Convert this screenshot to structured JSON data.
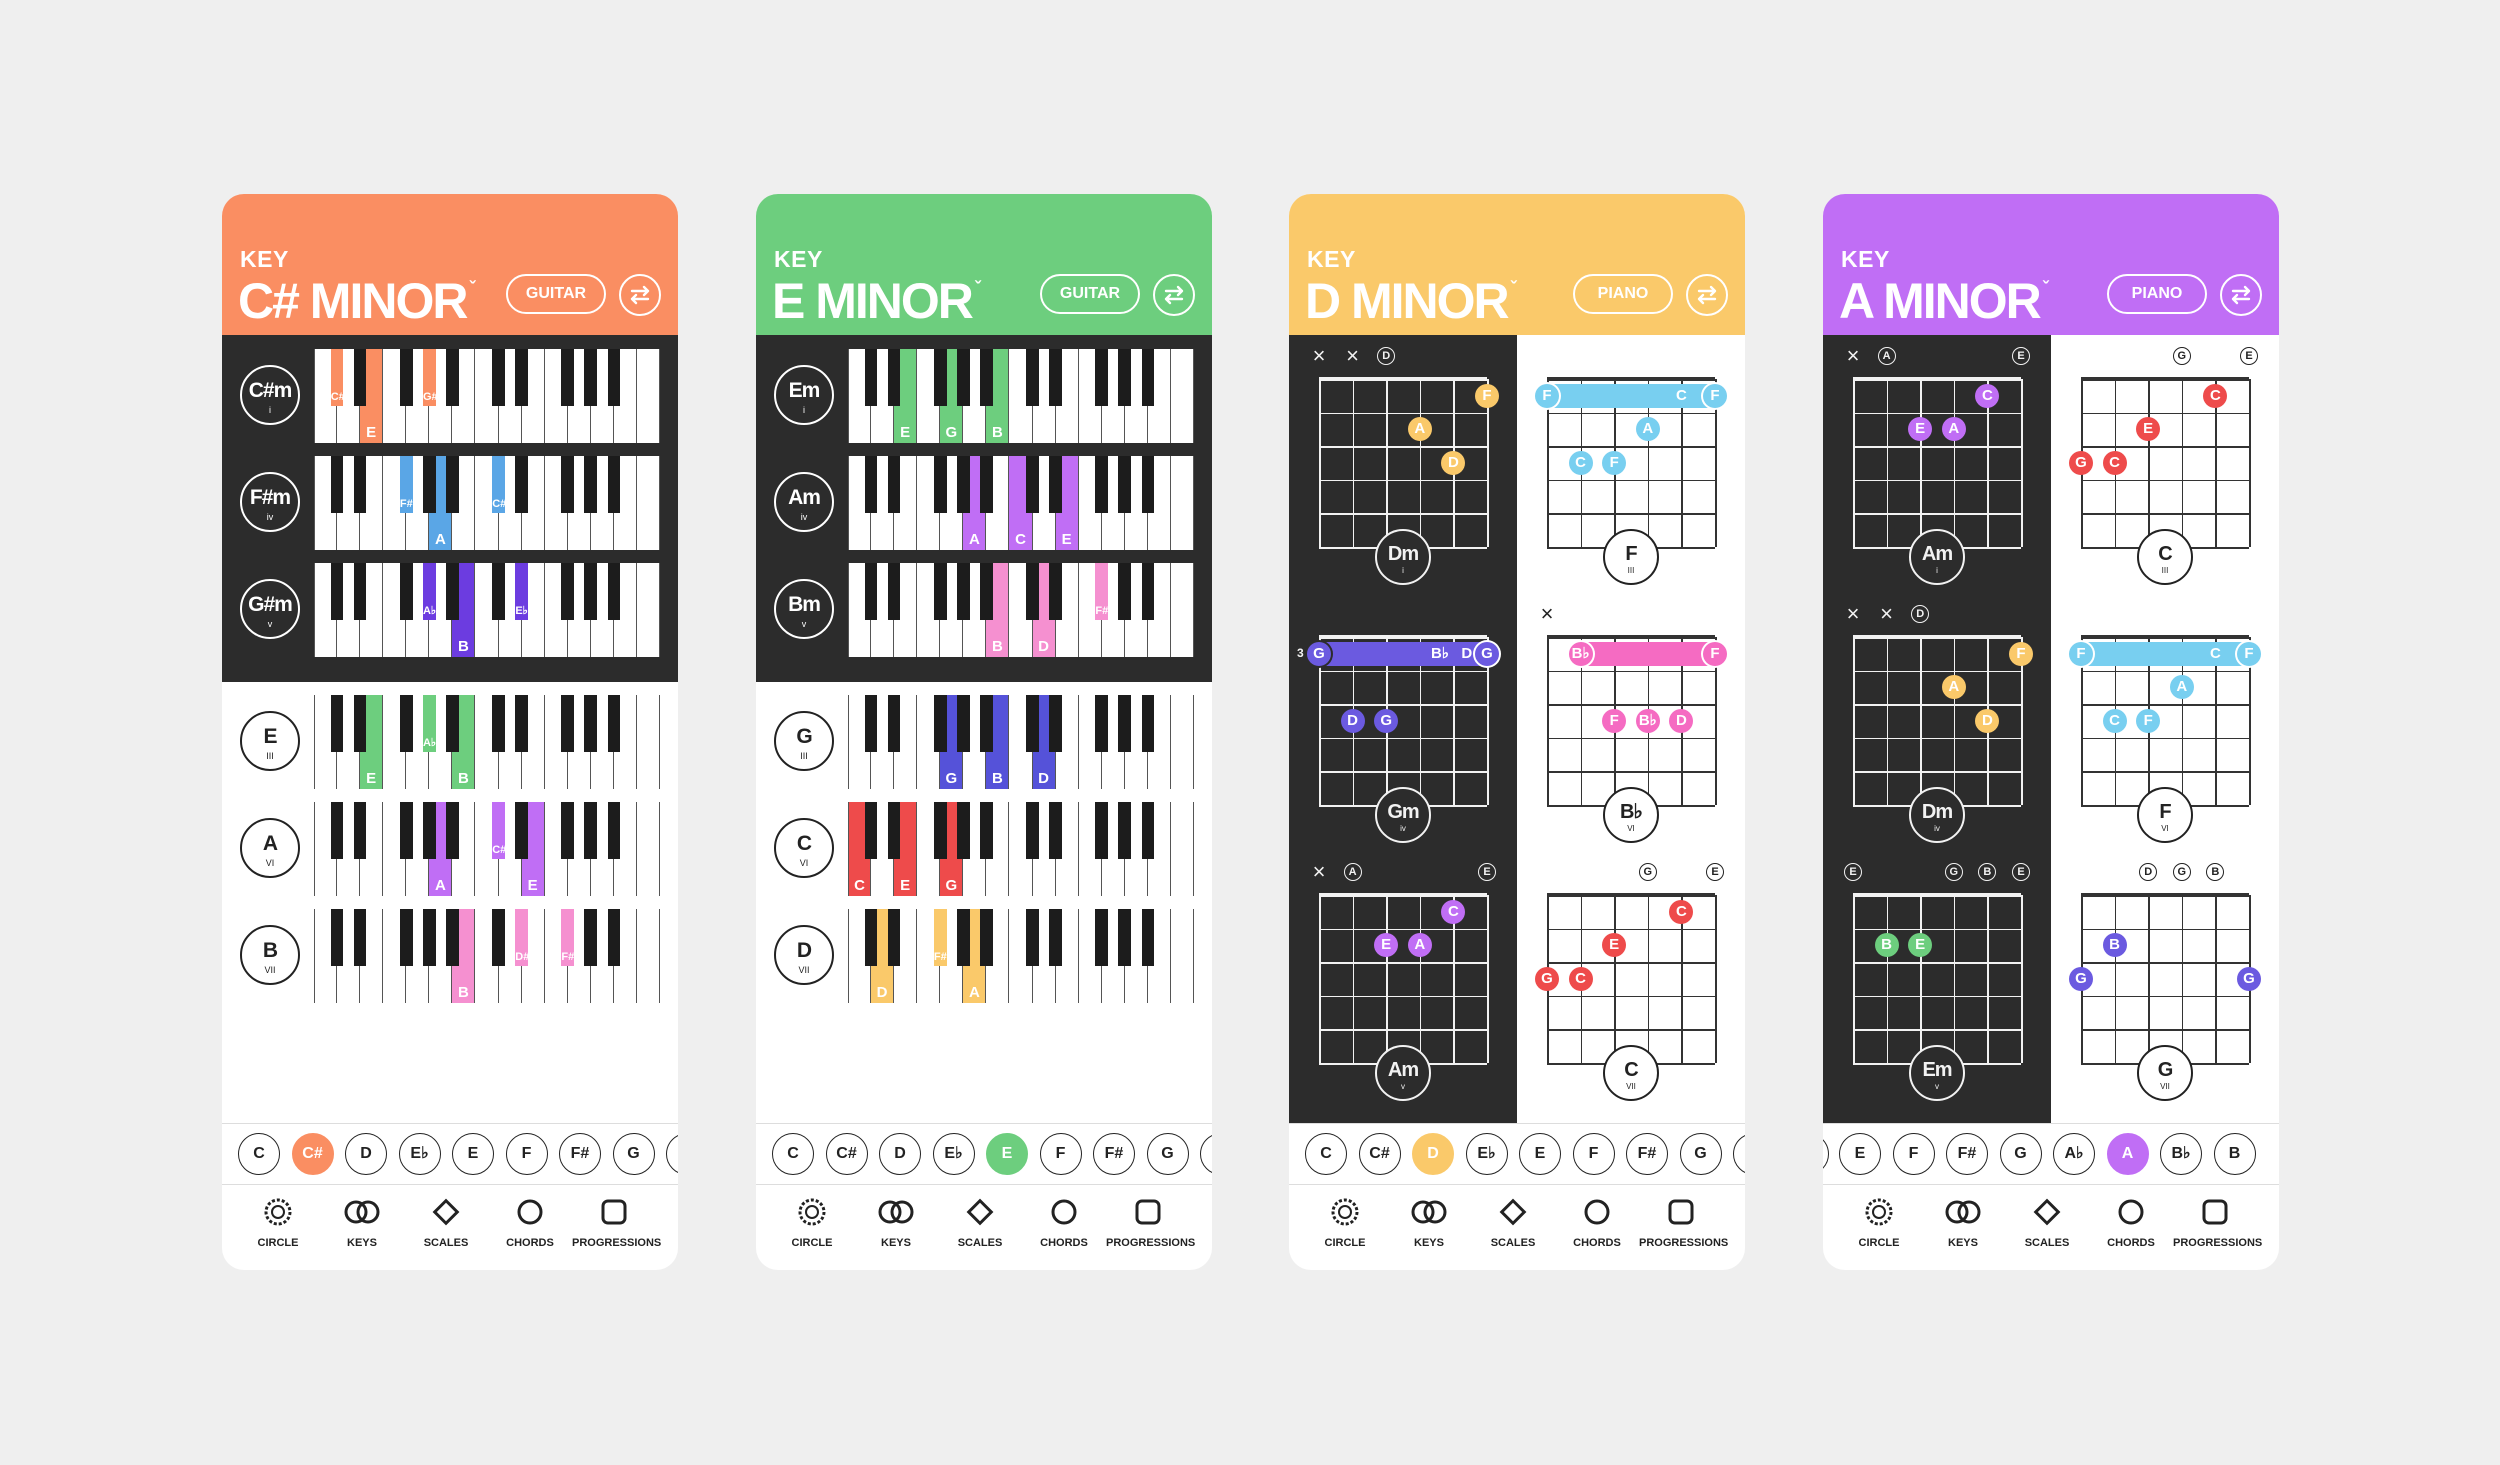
{
  "colors": {
    "orange": "#fa8e62",
    "green": "#6dce7e",
    "yellow": "#fac96a",
    "purple": "#c06ef5",
    "blue_key": "#5aa6e6",
    "dark_purple_key": "#6c3ce0",
    "pink": "#f56bc2",
    "red": "#ee4b4b",
    "indigo": "#6b5ae0",
    "cyan": "#78cff0",
    "navy": "#5552d9"
  },
  "key_label": "KEY",
  "caret": "ˇ",
  "nav": [
    {
      "label": "CIRCLE",
      "icon": "circle-of-fifths-icon"
    },
    {
      "label": "KEYS",
      "icon": "keys-rings-icon"
    },
    {
      "label": "SCALES",
      "icon": "diamond-icon"
    },
    {
      "label": "CHORDS",
      "icon": "ring-icon"
    },
    {
      "label": "PROGRESSIONS",
      "icon": "square-icon"
    }
  ],
  "phones": [
    {
      "title": "C# MINOR",
      "instrument": "GUITAR",
      "accent": "#fa8e62",
      "keybar": [
        {
          "t": "C"
        },
        {
          "t": "C#",
          "sel": true
        },
        {
          "t": "D"
        },
        {
          "t": "E♭"
        },
        {
          "t": "E"
        },
        {
          "t": "F"
        },
        {
          "t": "F#"
        },
        {
          "t": "G"
        },
        {
          "t": ""
        }
      ],
      "chords": [
        {
          "name": "C#m",
          "num": "i",
          "color": "#fa8e62",
          "keys": [
            {
              "k": 1,
              "l": "C#"
            },
            {
              "k": 4,
              "l": "E"
            },
            {
              "k": 8,
              "l": "G#"
            }
          ]
        },
        {
          "name": "F#m",
          "num": "iv",
          "color": "#5aa6e6",
          "keys": [
            {
              "k": 6,
              "l": "F#"
            },
            {
              "k": 9,
              "l": "A"
            },
            {
              "k": 13,
              "l": "C#"
            }
          ]
        },
        {
          "name": "G#m",
          "num": "v",
          "color": "#6c3ce0",
          "keys": [
            {
              "k": 8,
              "l": "A♭"
            },
            {
              "k": 11,
              "l": "B"
            },
            {
              "k": 15,
              "l": "E♭"
            }
          ]
        },
        {
          "name": "E",
          "num": "III",
          "color": "#6dce7e",
          "keys": [
            {
              "k": 4,
              "l": "E"
            },
            {
              "k": 8,
              "l": "A♭"
            },
            {
              "k": 11,
              "l": "B"
            }
          ]
        },
        {
          "name": "A",
          "num": "VI",
          "color": "#c06ef5",
          "keys": [
            {
              "k": 9,
              "l": "A"
            },
            {
              "k": 13,
              "l": "C#"
            },
            {
              "k": 16,
              "l": "E"
            }
          ]
        },
        {
          "name": "B",
          "num": "VII",
          "color": "#f590d0",
          "keys": [
            {
              "k": 11,
              "l": "B"
            },
            {
              "k": 15,
              "l": "D#"
            },
            {
              "k": 18,
              "l": "F#"
            }
          ]
        }
      ]
    },
    {
      "title": "E MINOR",
      "instrument": "GUITAR",
      "accent": "#6dce7e",
      "keybar": [
        {
          "t": "C"
        },
        {
          "t": "C#"
        },
        {
          "t": "D"
        },
        {
          "t": "E♭"
        },
        {
          "t": "E",
          "sel": true
        },
        {
          "t": "F"
        },
        {
          "t": "F#"
        },
        {
          "t": "G"
        },
        {
          "t": ""
        }
      ],
      "chords": [
        {
          "name": "Em",
          "num": "i",
          "color": "#6dce7e",
          "keys": [
            {
              "k": 4,
              "l": "E"
            },
            {
              "k": 7,
              "l": "G"
            },
            {
              "k": 11,
              "l": "B"
            }
          ]
        },
        {
          "name": "Am",
          "num": "iv",
          "color": "#c06ef5",
          "keys": [
            {
              "k": 9,
              "l": "A"
            },
            {
              "k": 12,
              "l": "C"
            },
            {
              "k": 16,
              "l": "E"
            }
          ]
        },
        {
          "name": "Bm",
          "num": "v",
          "color": "#f590d0",
          "keys": [
            {
              "k": 11,
              "l": "B"
            },
            {
              "k": 14,
              "l": "D"
            },
            {
              "k": 18,
              "l": "F#"
            }
          ]
        },
        {
          "name": "G",
          "num": "III",
          "color": "#5552d9",
          "keys": [
            {
              "k": 7,
              "l": "G"
            },
            {
              "k": 11,
              "l": "B"
            },
            {
              "k": 14,
              "l": "D"
            }
          ]
        },
        {
          "name": "C",
          "num": "VI",
          "color": "#ee4b4b",
          "keys": [
            {
              "k": 0,
              "l": "C"
            },
            {
              "k": 4,
              "l": "E"
            },
            {
              "k": 7,
              "l": "G"
            }
          ]
        },
        {
          "name": "D",
          "num": "VII",
          "color": "#fac96a",
          "keys": [
            {
              "k": 2,
              "l": "D"
            },
            {
              "k": 6,
              "l": "F#"
            },
            {
              "k": 9,
              "l": "A"
            }
          ]
        }
      ]
    },
    {
      "title": "D MINOR",
      "instrument": "PIANO",
      "accent": "#fac96a",
      "keybar": [
        {
          "t": "C"
        },
        {
          "t": "C#"
        },
        {
          "t": "D",
          "sel": true
        },
        {
          "t": "E♭"
        },
        {
          "t": "E"
        },
        {
          "t": "F"
        },
        {
          "t": "F#"
        },
        {
          "t": "G"
        },
        {
          "t": ""
        }
      ],
      "guitar": [
        {
          "name": "Dm",
          "num": "i",
          "color": "#fac96a",
          "dark": true,
          "tuning": [
            {
              "s": 0,
              "m": "x"
            },
            {
              "s": 1,
              "m": "x"
            },
            {
              "s": 2,
              "m": "D"
            }
          ],
          "dots": [
            {
              "s": 5,
              "f": 1,
              "l": "F"
            },
            {
              "s": 3,
              "f": 2,
              "l": "A"
            },
            {
              "s": 4,
              "f": 3,
              "l": "D"
            }
          ]
        },
        {
          "name": "F",
          "num": "III",
          "color": "#78cff0",
          "dark": false,
          "tuning": [],
          "barre": {
            "f": 1,
            "from": 0,
            "to": 5,
            "l1": "F",
            "l2": "C",
            "l3": "F"
          },
          "dots": [
            {
              "s": 3,
              "f": 2,
              "l": "A"
            },
            {
              "s": 1,
              "f": 3,
              "l": "C"
            },
            {
              "s": 2,
              "f": 3,
              "l": "F"
            }
          ]
        },
        {
          "name": "Gm",
          "num": "iv",
          "color": "#6b5ae0",
          "dark": true,
          "tuning": [],
          "fretnum": "3",
          "barre": {
            "f": 1,
            "from": 0,
            "to": 5,
            "l1": "G",
            "l2": "B♭",
            "l3": "D",
            "l4": "G"
          },
          "dots": [
            {
              "s": 1,
              "f": 3,
              "l": "D"
            },
            {
              "s": 2,
              "f": 3,
              "l": "G"
            }
          ]
        },
        {
          "name": "B♭",
          "num": "VI",
          "color": "#f56bc2",
          "dark": false,
          "tuning": [
            {
              "s": 0,
              "m": "x"
            }
          ],
          "barre": {
            "f": 1,
            "from": 1,
            "to": 5,
            "l1": "B♭",
            "l3": "F"
          },
          "dots": [
            {
              "s": 2,
              "f": 3,
              "l": "F"
            },
            {
              "s": 3,
              "f": 3,
              "l": "B♭"
            },
            {
              "s": 4,
              "f": 3,
              "l": "D"
            }
          ]
        },
        {
          "name": "Am",
          "num": "v",
          "color": "#c06ef5",
          "dark": true,
          "tuning": [
            {
              "s": 0,
              "m": "x"
            },
            {
              "s": 1,
              "m": "A"
            },
            {
              "s": 5,
              "m": "E"
            }
          ],
          "dots": [
            {
              "s": 4,
              "f": 1,
              "l": "C"
            },
            {
              "s": 2,
              "f": 2,
              "l": "E"
            },
            {
              "s": 3,
              "f": 2,
              "l": "A"
            }
          ]
        },
        {
          "name": "C",
          "num": "VII",
          "color": "#ee4b4b",
          "dark": false,
          "tuning": [
            {
              "s": 3,
              "m": "G"
            },
            {
              "s": 5,
              "m": "E"
            }
          ],
          "dots": [
            {
              "s": 4,
              "f": 1,
              "l": "C"
            },
            {
              "s": 2,
              "f": 2,
              "l": "E"
            },
            {
              "s": 0,
              "f": 3,
              "l": "G"
            },
            {
              "s": 1,
              "f": 3,
              "l": "C"
            }
          ]
        }
      ]
    },
    {
      "title": "A MINOR",
      "instrument": "PIANO",
      "accent": "#c06ef5",
      "keybar": [
        {
          "t": ""
        },
        {
          "t": "E"
        },
        {
          "t": "F"
        },
        {
          "t": "F#"
        },
        {
          "t": "G"
        },
        {
          "t": "A♭"
        },
        {
          "t": "A",
          "sel": true
        },
        {
          "t": "B♭"
        },
        {
          "t": "B"
        }
      ],
      "guitar": [
        {
          "name": "Am",
          "num": "i",
          "color": "#c06ef5",
          "dark": true,
          "tuning": [
            {
              "s": 0,
              "m": "x"
            },
            {
              "s": 1,
              "m": "A"
            },
            {
              "s": 5,
              "m": "E"
            }
          ],
          "dots": [
            {
              "s": 4,
              "f": 1,
              "l": "C"
            },
            {
              "s": 2,
              "f": 2,
              "l": "E"
            },
            {
              "s": 3,
              "f": 2,
              "l": "A"
            }
          ]
        },
        {
          "name": "C",
          "num": "III",
          "color": "#ee4b4b",
          "dark": false,
          "tuning": [
            {
              "s": 3,
              "m": "G"
            },
            {
              "s": 5,
              "m": "E"
            }
          ],
          "dots": [
            {
              "s": 4,
              "f": 1,
              "l": "C"
            },
            {
              "s": 2,
              "f": 2,
              "l": "E"
            },
            {
              "s": 0,
              "f": 3,
              "l": "G"
            },
            {
              "s": 1,
              "f": 3,
              "l": "C"
            }
          ]
        },
        {
          "name": "Dm",
          "num": "iv",
          "color": "#fac96a",
          "dark": true,
          "tuning": [
            {
              "s": 0,
              "m": "x"
            },
            {
              "s": 1,
              "m": "x"
            },
            {
              "s": 2,
              "m": "D"
            }
          ],
          "dots": [
            {
              "s": 5,
              "f": 1,
              "l": "F"
            },
            {
              "s": 3,
              "f": 2,
              "l": "A"
            },
            {
              "s": 4,
              "f": 3,
              "l": "D"
            }
          ]
        },
        {
          "name": "F",
          "num": "VI",
          "color": "#78cff0",
          "dark": false,
          "tuning": [],
          "barre": {
            "f": 1,
            "from": 0,
            "to": 5,
            "l1": "F",
            "l2": "C",
            "l3": "F"
          },
          "dots": [
            {
              "s": 3,
              "f": 2,
              "l": "A"
            },
            {
              "s": 1,
              "f": 3,
              "l": "C"
            },
            {
              "s": 2,
              "f": 3,
              "l": "F"
            }
          ]
        },
        {
          "name": "Em",
          "num": "v",
          "color": "#6dce7e",
          "dark": true,
          "tuning": [
            {
              "s": 0,
              "m": "E"
            },
            {
              "s": 3,
              "m": "G"
            },
            {
              "s": 4,
              "m": "B"
            },
            {
              "s": 5,
              "m": "E"
            }
          ],
          "dots": [
            {
              "s": 1,
              "f": 2,
              "l": "B"
            },
            {
              "s": 2,
              "f": 2,
              "l": "E"
            }
          ]
        },
        {
          "name": "G",
          "num": "VII",
          "color": "#6b5ae0",
          "dark": false,
          "tuning": [
            {
              "s": 2,
              "m": "D"
            },
            {
              "s": 3,
              "m": "G"
            },
            {
              "s": 4,
              "m": "B"
            }
          ],
          "dots": [
            {
              "s": 1,
              "f": 2,
              "l": "B"
            },
            {
              "s": 0,
              "f": 3,
              "l": "G"
            },
            {
              "s": 5,
              "f": 3,
              "l": "G"
            }
          ]
        }
      ]
    }
  ]
}
